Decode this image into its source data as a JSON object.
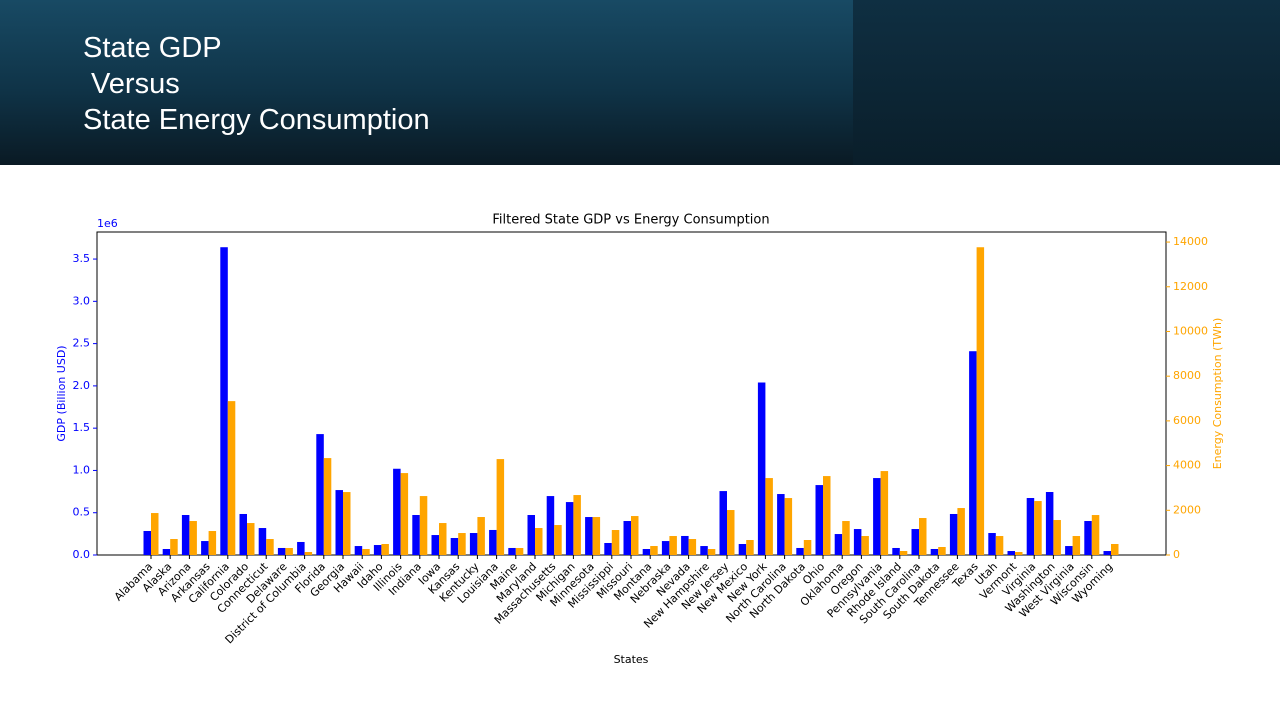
{
  "header": {
    "title_lines": [
      "State GDP",
      " Versus",
      "State Energy Consumption"
    ]
  },
  "chart_data": {
    "type": "bar",
    "title": "Filtered State GDP vs Energy Consumption",
    "x_label": "States",
    "y_label": "GDP (Billion USD)",
    "y2_label": "Energy Consumption (TWh)",
    "y_offset_label": "1e6",
    "categories": [
      "Alabama",
      "Alaska",
      "Arizona",
      "Arkansas",
      "California",
      "Colorado",
      "Connecticut",
      "Delaware",
      "District of Columbia",
      "Florida",
      "Georgia",
      "Hawaii",
      "Idaho",
      "Illinois",
      "Indiana",
      "Iowa",
      "Kansas",
      "Kentucky",
      "Louisiana",
      "Maine",
      "Maryland",
      "Massachusetts",
      "Michigan",
      "Minnesota",
      "Mississippi",
      "Missouri",
      "Montana",
      "Nebraska",
      "Nevada",
      "New Hampshire",
      "New Jersey",
      "New Mexico",
      "New York",
      "North Carolina",
      "North Dakota",
      "Ohio",
      "Oklahoma",
      "Oregon",
      "Pennsylvania",
      "Rhode Island",
      "South Carolina",
      "South Dakota",
      "Tennessee",
      "Texas",
      "Utah",
      "Vermont",
      "Virginia",
      "Washington",
      "West Virginia",
      "Wisconsin",
      "Wyoming"
    ],
    "series": [
      {
        "name": "GDP",
        "color": "#0000ff",
        "values": [
          284000,
          71000,
          473000,
          165000,
          3640000,
          485000,
          319000,
          83000,
          154000,
          1430000,
          768000,
          106000,
          118000,
          1020000,
          473000,
          236000,
          201000,
          260000,
          296000,
          83000,
          473000,
          697000,
          626000,
          449000,
          142000,
          402000,
          71000,
          165000,
          225000,
          106000,
          756000,
          130000,
          2040000,
          721000,
          83000,
          827000,
          248000,
          307000,
          910000,
          83000,
          307000,
          71000,
          485000,
          2410000,
          260000,
          47000,
          674000,
          745000,
          106000,
          402000,
          47000
        ]
      },
      {
        "name": "Energy Consumption",
        "color": "#ffa500",
        "axis": "y2",
        "values": [
          1877,
          715,
          1520,
          1073,
          6884,
          1430,
          715,
          313,
          134,
          4336,
          2816,
          268,
          492,
          3665,
          2637,
          1430,
          983,
          1699,
          4291,
          313,
          1207,
          1341,
          2682,
          1699,
          1118,
          1743,
          402,
          849,
          715,
          268,
          2012,
          671,
          3442,
          2548,
          671,
          3531,
          1520,
          849,
          3755,
          179,
          1654,
          358,
          2101,
          13768,
          849,
          134,
          2414,
          1565,
          849,
          1788,
          492
        ]
      }
    ],
    "ylim": [
      0,
      3820000
    ],
    "yticks": [
      {
        "value": 0,
        "label": "0.0"
      },
      {
        "value": 500000,
        "label": "0.5"
      },
      {
        "value": 1000000,
        "label": "1.0"
      },
      {
        "value": 1500000,
        "label": "1.5"
      },
      {
        "value": 2000000,
        "label": "2.0"
      },
      {
        "value": 2500000,
        "label": "2.5"
      },
      {
        "value": 3000000,
        "label": "3.0"
      },
      {
        "value": 3500000,
        "label": "3.5"
      }
    ],
    "y2lim": [
      0,
      14450
    ],
    "y2ticks": [
      0,
      2000,
      4000,
      6000,
      8000,
      10000,
      12000,
      14000
    ],
    "grid": false
  }
}
